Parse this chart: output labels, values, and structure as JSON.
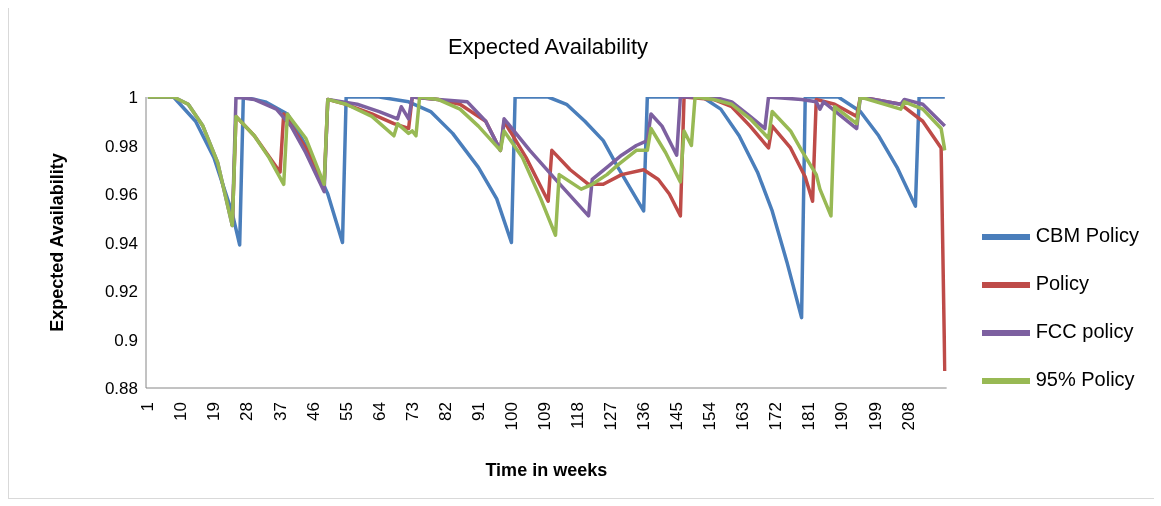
{
  "chart_data": {
    "type": "line",
    "title": "Expected Availability",
    "xlabel": "Time in weeks",
    "ylabel": "Expected Availability",
    "xlim": [
      0.5,
      218.5
    ],
    "xticks": [
      1,
      10,
      19,
      28,
      37,
      46,
      55,
      64,
      73,
      82,
      91,
      100,
      109,
      118,
      127,
      136,
      145,
      154,
      163,
      172,
      181,
      190,
      199,
      208
    ],
    "ylim": [
      0.88,
      1
    ],
    "yticks": [
      0.88,
      0.9,
      0.92,
      0.94,
      0.96,
      0.98,
      1
    ],
    "legend": "right",
    "marker": "none",
    "line_style": "solid",
    "series": [
      {
        "name": "CBM Policy",
        "color": "#4a7ebb",
        "x": [
          1,
          8,
          14,
          19,
          24,
          26,
          27,
          33,
          39,
          44,
          50,
          54,
          55,
          64,
          72,
          78,
          84,
          91,
          96,
          100,
          101,
          110,
          115,
          120,
          125,
          129,
          136,
          137,
          152,
          157,
          162,
          167,
          171,
          175,
          179,
          180,
          189,
          195,
          200,
          205,
          210,
          211,
          218
        ],
        "values": [
          1,
          1,
          0.99,
          0.975,
          0.952,
          0.939,
          1,
          0.998,
          0.993,
          0.98,
          0.96,
          0.94,
          1,
          1,
          0.998,
          0.994,
          0.985,
          0.971,
          0.958,
          0.94,
          1,
          1,
          0.997,
          0.99,
          0.982,
          0.971,
          0.953,
          1,
          1,
          0.995,
          0.984,
          0.969,
          0.953,
          0.932,
          0.909,
          1,
          1,
          0.994,
          0.984,
          0.971,
          0.955,
          1,
          1
        ]
      },
      {
        "name": "Policy",
        "color": "#be4b48",
        "x": [
          24,
          25,
          30,
          37,
          38,
          44,
          49,
          50,
          55,
          62,
          68,
          72,
          73,
          80,
          86,
          93,
          97,
          98,
          104,
          110,
          111,
          116,
          121,
          125,
          130,
          136,
          140,
          143,
          146,
          147,
          155,
          160,
          165,
          170,
          171,
          176,
          180,
          182,
          183,
          188,
          194,
          195,
          206,
          212,
          217,
          218
        ],
        "values": [
          0.947,
          0.992,
          0.984,
          0.969,
          0.993,
          0.979,
          0.964,
          0.999,
          0.997,
          0.993,
          0.989,
          0.987,
          1,
          0.999,
          0.997,
          0.99,
          0.978,
          0.99,
          0.975,
          0.957,
          0.978,
          0.97,
          0.964,
          0.964,
          0.968,
          0.97,
          0.966,
          0.96,
          0.951,
          1,
          0.999,
          0.996,
          0.988,
          0.979,
          0.988,
          0.979,
          0.967,
          0.957,
          0.999,
          0.997,
          0.992,
          1,
          0.997,
          0.99,
          0.979,
          0.887
        ]
      },
      {
        "name": "FCC policy",
        "color": "#7d60a0",
        "x": [
          1,
          8,
          12,
          16,
          20,
          24,
          25,
          30,
          36,
          40,
          44,
          49,
          50,
          58,
          64,
          69,
          70,
          72,
          73,
          80,
          88,
          93,
          97,
          98,
          105,
          112,
          121,
          122,
          126,
          130,
          134,
          137,
          138,
          141,
          145,
          146,
          155,
          160,
          165,
          169,
          170,
          179,
          183,
          184,
          185,
          194,
          195,
          206,
          207,
          212,
          218
        ],
        "values": [
          1,
          1,
          0.997,
          0.988,
          0.973,
          0.947,
          1,
          0.999,
          0.995,
          0.988,
          0.977,
          0.961,
          0.999,
          0.997,
          0.994,
          0.991,
          0.996,
          0.991,
          1,
          0.999,
          0.998,
          0.99,
          0.978,
          0.991,
          0.978,
          0.966,
          0.951,
          0.966,
          0.971,
          0.976,
          0.98,
          0.982,
          0.993,
          0.988,
          0.976,
          1,
          1,
          0.998,
          0.992,
          0.987,
          1,
          0.999,
          0.998,
          0.995,
          0.998,
          0.987,
          1,
          0.997,
          0.999,
          0.997,
          0.988
        ]
      },
      {
        "name": "95% Policy",
        "color": "#98b954",
        "x": [
          1,
          8,
          12,
          16,
          20,
          24,
          25,
          30,
          34,
          38,
          39,
          44,
          49,
          50,
          55,
          62,
          68,
          69,
          72,
          73,
          74,
          75,
          80,
          86,
          91,
          97,
          98,
          103,
          108,
          112,
          113,
          119,
          122,
          126,
          129,
          134,
          137,
          138,
          142,
          146,
          147,
          149,
          150,
          155,
          160,
          165,
          170,
          171,
          176,
          179,
          183,
          184,
          187,
          188,
          194,
          195,
          206,
          207,
          212,
          217,
          218
        ],
        "values": [
          1,
          1,
          0.997,
          0.988,
          0.973,
          0.947,
          0.992,
          0.984,
          0.975,
          0.964,
          0.993,
          0.983,
          0.964,
          0.999,
          0.997,
          0.992,
          0.984,
          0.989,
          0.985,
          0.986,
          0.984,
          1,
          0.999,
          0.995,
          0.988,
          0.978,
          0.986,
          0.975,
          0.958,
          0.943,
          0.968,
          0.962,
          0.964,
          0.968,
          0.972,
          0.978,
          0.978,
          0.987,
          0.977,
          0.965,
          0.986,
          0.98,
          1,
          0.999,
          0.997,
          0.991,
          0.983,
          0.994,
          0.986,
          0.978,
          0.968,
          0.962,
          0.951,
          0.996,
          0.989,
          1,
          0.995,
          0.998,
          0.995,
          0.987,
          0.978
        ]
      }
    ]
  }
}
